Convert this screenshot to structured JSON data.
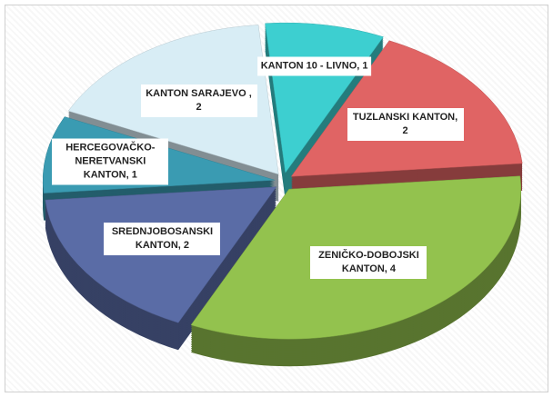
{
  "chart_data": {
    "type": "pie",
    "categories": [
      "KANTON 10 - LIVNO,",
      "TUZLANSKI KANTON,",
      "ZENIČKO-DOBOJSKI KANTON,",
      "SREDNJOBOSANSKI KANTON,",
      "HERCEGOVAČKO-NERETVANSKI KANTON,",
      "KANTON SARAJEVO ,"
    ],
    "values": [
      1,
      2,
      4,
      2,
      1,
      2
    ],
    "colors": [
      "#3dcfd0",
      "#e06464",
      "#93c24e",
      "#5a6ca6",
      "#3a9bb2",
      "#d8edf5"
    ]
  }
}
